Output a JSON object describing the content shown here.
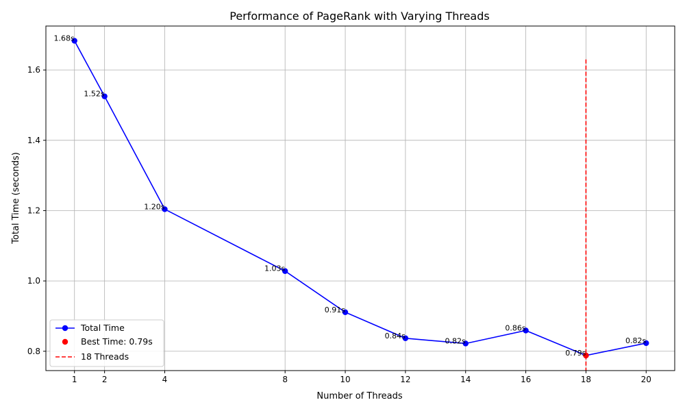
{
  "chart_data": {
    "type": "line",
    "title": "Performance of PageRank with Varying Threads",
    "xlabel": "Number of Threads",
    "ylabel": "Total Time (seconds)",
    "xlim": [
      0.05,
      20.95
    ],
    "ylim": [
      0.745,
      1.725
    ],
    "xticks": [
      1,
      2,
      4,
      8,
      10,
      12,
      14,
      16,
      18,
      20
    ],
    "xtick_labels": [
      "1",
      "2",
      "4",
      "8",
      "10",
      "12",
      "14",
      "16",
      "18",
      "20"
    ],
    "yticks": [
      0.8,
      1.0,
      1.2,
      1.4,
      1.6
    ],
    "ytick_labels": [
      "0.8",
      "1.0",
      "1.2",
      "1.4",
      "1.6"
    ],
    "grid": true,
    "legend_position": "lower-left",
    "series": [
      {
        "name": "Total Time",
        "color": "#0000ff",
        "x": [
          1,
          2,
          4,
          8,
          10,
          12,
          14,
          16,
          18,
          20
        ],
        "y": [
          1.683,
          1.525,
          1.204,
          1.028,
          0.911,
          0.837,
          0.822,
          0.859,
          0.788,
          0.823
        ],
        "labels": [
          "1.68s",
          "1.52s",
          "1.20s",
          "1.03s",
          "0.91s",
          "0.84s",
          "0.82s",
          "0.86s",
          "0.79s",
          "0.82s"
        ]
      }
    ],
    "highlight_point": {
      "name": "Best Time: 0.79s",
      "x": 18,
      "y": 0.788,
      "color": "#ff0000"
    },
    "vline": {
      "name": "18 Threads",
      "x": 18,
      "ymin": 0.745,
      "ymax": 1.63,
      "color": "#ff0000"
    }
  }
}
